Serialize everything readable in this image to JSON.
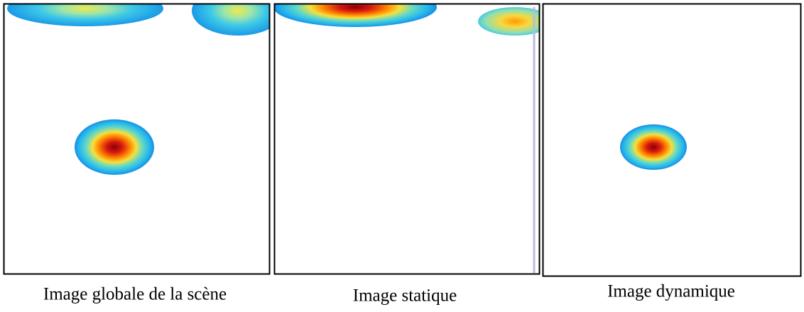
{
  "panels": [
    {
      "caption": "Image globale de la scène"
    },
    {
      "caption": "Image statique"
    },
    {
      "caption": "Image dynamique"
    }
  ]
}
